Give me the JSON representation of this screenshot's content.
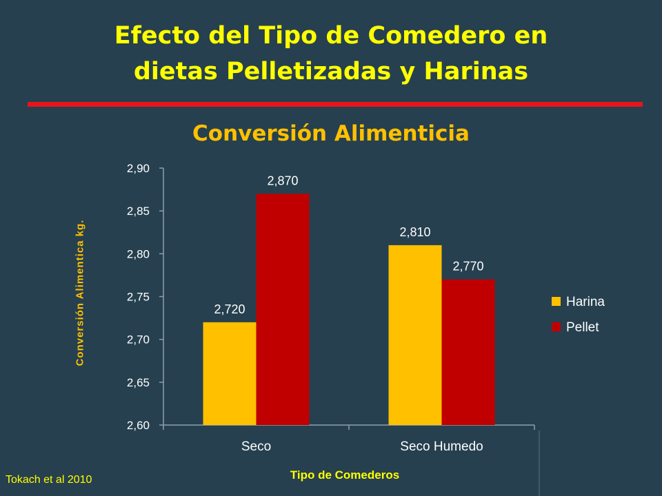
{
  "slide": {
    "title_line1": "Efecto del Tipo de Comedero en",
    "title_line2": "dietas Pelletizadas y Harinas",
    "source": "Tokach et al 2010"
  },
  "colors": {
    "background": "#26404f",
    "title": "#ffff00",
    "rule": "#e8141a",
    "chart_title": "#ffc000",
    "harina": "#ffc000",
    "pellet": "#c00000"
  },
  "chart_data": {
    "type": "bar",
    "title": "Conversión Alimenticia",
    "xlabel": "Tipo de Comederos",
    "ylabel": "Conversión  Alimentica kg.",
    "categories": [
      "Seco",
      "Seco Humedo"
    ],
    "series": [
      {
        "name": "Harina",
        "values": [
          2.72,
          2.81
        ],
        "labels": [
          "2,720",
          "2,810"
        ],
        "color": "#ffc000"
      },
      {
        "name": "Pellet",
        "values": [
          2.87,
          2.77
        ],
        "labels": [
          "2,870",
          "2,770"
        ],
        "color": "#c00000"
      }
    ],
    "ylim": [
      2.6,
      2.9
    ],
    "yticks": [
      2.6,
      2.65,
      2.7,
      2.75,
      2.8,
      2.85,
      2.9
    ],
    "ytick_labels": [
      "2,60",
      "2,65",
      "2,70",
      "2,75",
      "2,80",
      "2,85",
      "2,90"
    ],
    "grid": false,
    "legend_position": "right"
  }
}
